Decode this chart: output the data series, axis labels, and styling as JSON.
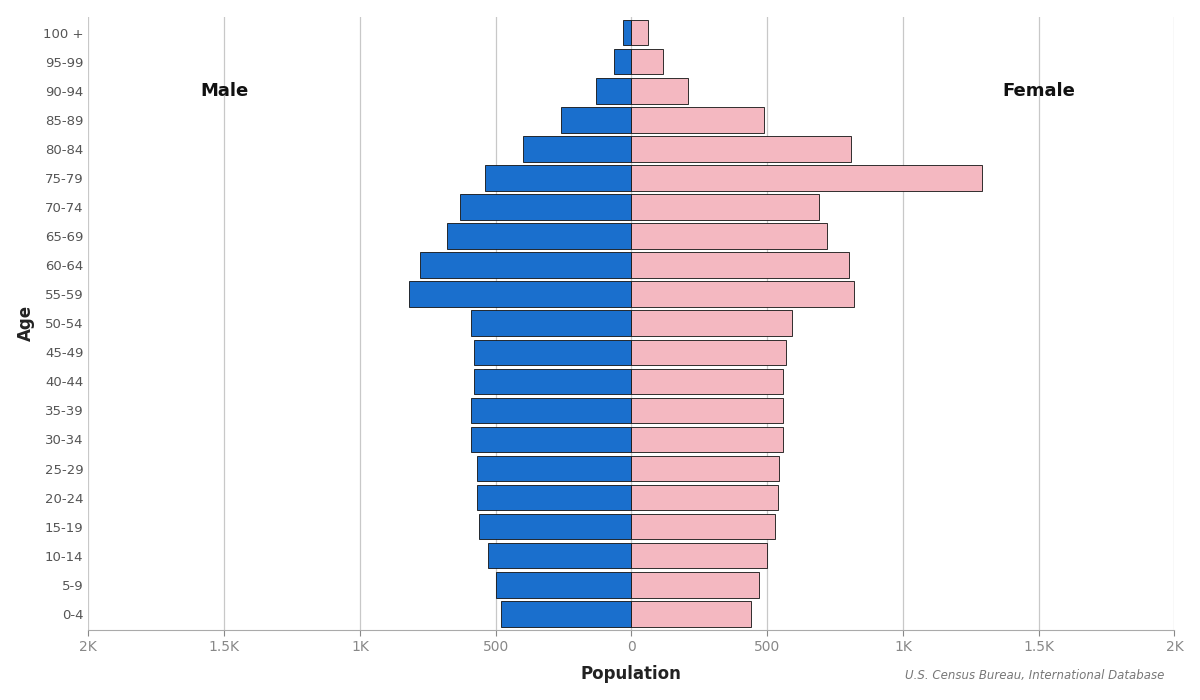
{
  "age_groups": [
    "0-4",
    "5-9",
    "10-14",
    "15-19",
    "20-24",
    "25-29",
    "30-34",
    "35-39",
    "40-44",
    "45-49",
    "50-54",
    "55-59",
    "60-64",
    "65-69",
    "70-74",
    "75-79",
    "80-84",
    "85-89",
    "90-94",
    "95-99",
    "100 +"
  ],
  "male": [
    480,
    500,
    530,
    560,
    570,
    570,
    590,
    590,
    580,
    580,
    590,
    820,
    780,
    680,
    630,
    540,
    400,
    260,
    130,
    65,
    30
  ],
  "female": [
    440,
    470,
    500,
    530,
    540,
    545,
    560,
    560,
    560,
    570,
    590,
    820,
    800,
    720,
    690,
    1290,
    810,
    490,
    210,
    115,
    60
  ],
  "male_color": "#1a6fcd",
  "female_color": "#f4b8c1",
  "bar_edge_color": "#111111",
  "xlabel": "Population",
  "ylabel": "Age",
  "background_color": "#ffffff",
  "grid_color": "#c8c8c8",
  "tick_label_color": "#555555",
  "annotation": "U.S. Census Bureau, International Database",
  "xlim": [
    -2000,
    2000
  ],
  "xtick_vals": [
    -2000,
    -1500,
    -1000,
    -500,
    0,
    500,
    1000,
    1500,
    2000
  ],
  "xtick_labels": [
    "2K",
    "1.5K",
    "1K",
    "500",
    "0",
    "500",
    "1K",
    "1.5K",
    "2K"
  ],
  "male_label": "Male",
  "female_label": "Female"
}
